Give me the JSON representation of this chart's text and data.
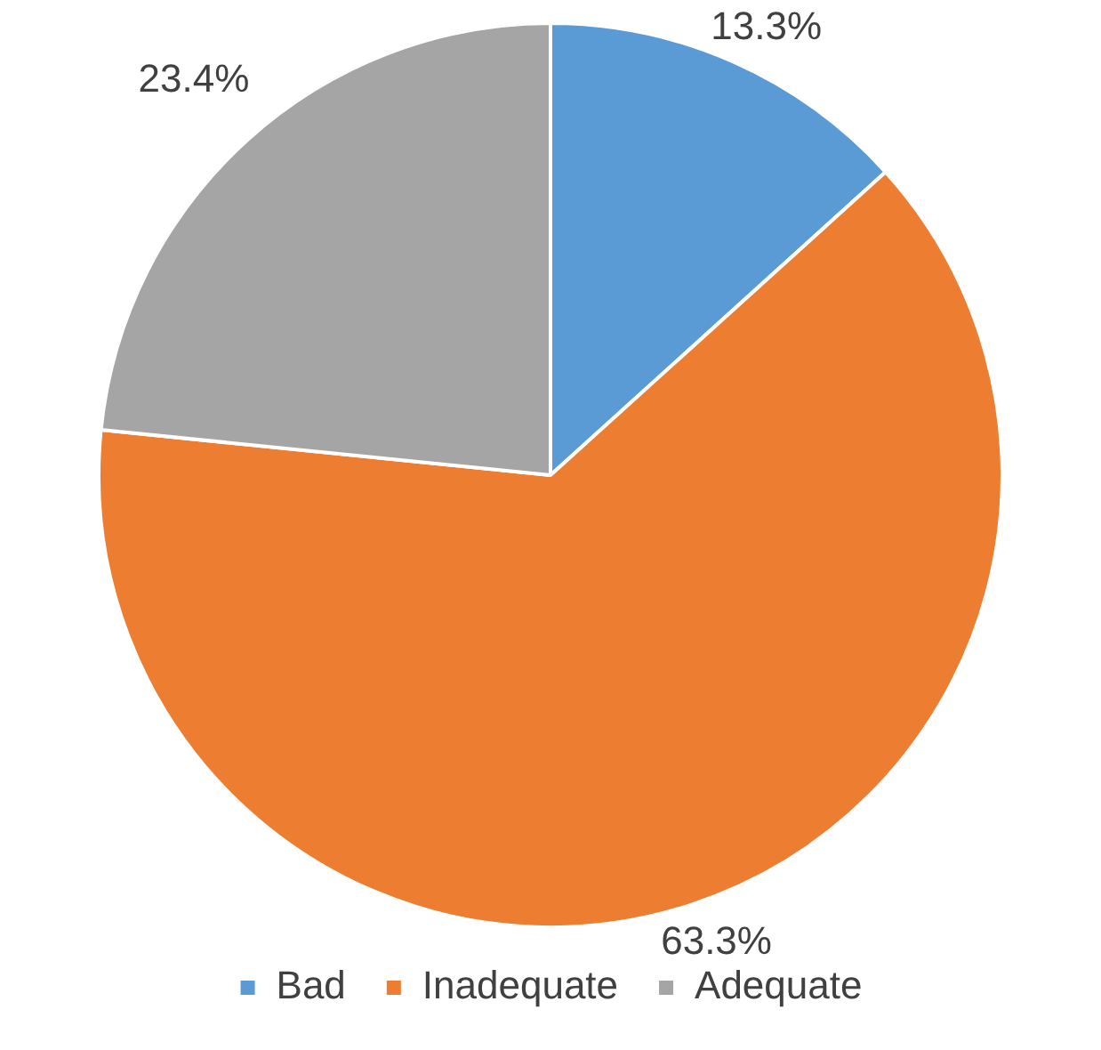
{
  "chart_data": {
    "type": "pie",
    "categories": [
      "Bad",
      "Inadequate",
      "Adequate"
    ],
    "values": [
      13.3,
      63.3,
      23.4
    ],
    "colors": [
      "#5b9bd5",
      "#ed7d31",
      "#a5a5a5"
    ],
    "value_labels": [
      "13.3%",
      "63.3%",
      "23.4%"
    ],
    "legend": "bottom"
  }
}
